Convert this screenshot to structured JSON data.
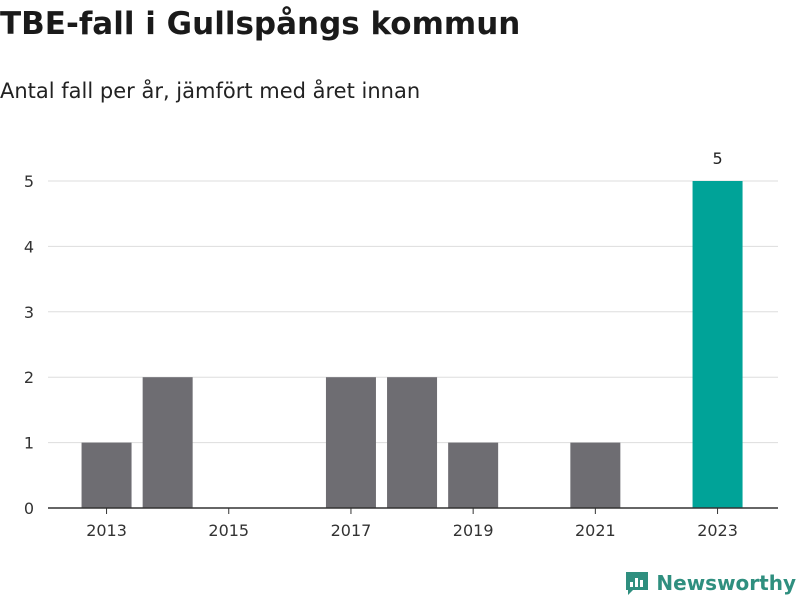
{
  "title": "TBE-fall i Gullspångs kommun",
  "subtitle": "Antal fall per år, jämfört med året innan",
  "brand": {
    "name": "Newsworthy",
    "color": "#2f8f7f"
  },
  "colors": {
    "bar": "#6e6d72",
    "highlight": "#00a398",
    "grid": "#dddddd",
    "axis": "#333333"
  },
  "chart_data": {
    "type": "bar",
    "categories": [
      "2013",
      "2014",
      "2015",
      "2016",
      "2017",
      "2018",
      "2019",
      "2020",
      "2021",
      "2022",
      "2023"
    ],
    "values": [
      1,
      2,
      0,
      0,
      2,
      2,
      1,
      0,
      1,
      0,
      5
    ],
    "x_tick_labels": [
      "2013",
      "2015",
      "2017",
      "2019",
      "2021",
      "2023"
    ],
    "y_ticks": [
      0,
      1,
      2,
      3,
      4,
      5
    ],
    "ylim": [
      0,
      5
    ],
    "highlight_category": "2023",
    "data_labels": [
      {
        "category": "2023",
        "text": "5"
      }
    ],
    "grid": true,
    "legend": "none"
  }
}
